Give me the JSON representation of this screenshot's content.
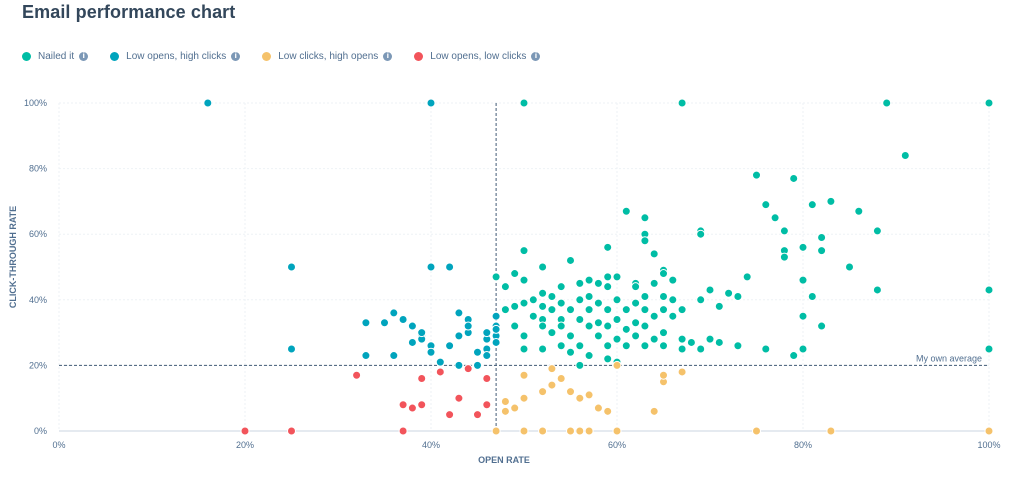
{
  "title": "Email performance chart",
  "legend": [
    {
      "label": "Nailed it",
      "color": "#00bda5"
    },
    {
      "label": "Low opens, high clicks",
      "color": "#00a4bd"
    },
    {
      "label": "Low clicks, high opens",
      "color": "#f5c26b"
    },
    {
      "label": "Low opens, low clicks",
      "color": "#f2545b"
    }
  ],
  "chart_data": {
    "type": "scatter",
    "title": "Email performance chart",
    "xlabel": "OPEN RATE",
    "ylabel": "CLICK-THROUGH RATE",
    "xlim": [
      0,
      100
    ],
    "ylim": [
      0,
      100
    ],
    "xticks": [
      "0%",
      "20%",
      "40%",
      "60%",
      "80%",
      "100%"
    ],
    "yticks": [
      "0%",
      "20%",
      "40%",
      "60%",
      "80%",
      "100%"
    ],
    "grid": true,
    "legend_position": "top-left",
    "reference_lines": [
      {
        "axis": "x",
        "value": 47
      },
      {
        "axis": "y",
        "value": 20,
        "label": "My own average"
      }
    ],
    "series": [
      {
        "name": "Nailed it",
        "color": "#00bda5",
        "points": [
          [
            50,
            100
          ],
          [
            67,
            100
          ],
          [
            89,
            100
          ],
          [
            100,
            100
          ],
          [
            91,
            84
          ],
          [
            75,
            78
          ],
          [
            79,
            77
          ],
          [
            76,
            69
          ],
          [
            83,
            70
          ],
          [
            81,
            69
          ],
          [
            86,
            67
          ],
          [
            77,
            65
          ],
          [
            61,
            67
          ],
          [
            63,
            65
          ],
          [
            88,
            61
          ],
          [
            82,
            59
          ],
          [
            78,
            61
          ],
          [
            69,
            61
          ],
          [
            69,
            60
          ],
          [
            63,
            60
          ],
          [
            63,
            58
          ],
          [
            59,
            56
          ],
          [
            80,
            56
          ],
          [
            78,
            55
          ],
          [
            82,
            55
          ],
          [
            64,
            54
          ],
          [
            50,
            55
          ],
          [
            78,
            53
          ],
          [
            55,
            52
          ],
          [
            47,
            47
          ],
          [
            49,
            48
          ],
          [
            50,
            46
          ],
          [
            52,
            50
          ],
          [
            85,
            50
          ],
          [
            65,
            49
          ],
          [
            65,
            48
          ],
          [
            57,
            46
          ],
          [
            59,
            47
          ],
          [
            60,
            47
          ],
          [
            62,
            45
          ],
          [
            64,
            45
          ],
          [
            66,
            46
          ],
          [
            48,
            44
          ],
          [
            56,
            45
          ],
          [
            58,
            45
          ],
          [
            54,
            44
          ],
          [
            62,
            44
          ],
          [
            59,
            44
          ],
          [
            74,
            47
          ],
          [
            80,
            46
          ],
          [
            100,
            43
          ],
          [
            88,
            43
          ],
          [
            52,
            42
          ],
          [
            53,
            41
          ],
          [
            57,
            41
          ],
          [
            63,
            41
          ],
          [
            65,
            41
          ],
          [
            70,
            43
          ],
          [
            72,
            42
          ],
          [
            73,
            41
          ],
          [
            69,
            40
          ],
          [
            81,
            41
          ],
          [
            50,
            39
          ],
          [
            51,
            40
          ],
          [
            54,
            39
          ],
          [
            56,
            40
          ],
          [
            58,
            39
          ],
          [
            60,
            40
          ],
          [
            62,
            39
          ],
          [
            66,
            40
          ],
          [
            48,
            37
          ],
          [
            49,
            38
          ],
          [
            52,
            38
          ],
          [
            53,
            37
          ],
          [
            55,
            37
          ],
          [
            57,
            37
          ],
          [
            59,
            37
          ],
          [
            61,
            37
          ],
          [
            63,
            37
          ],
          [
            65,
            37
          ],
          [
            67,
            37
          ],
          [
            71,
            38
          ],
          [
            80,
            35
          ],
          [
            51,
            35
          ],
          [
            52,
            34
          ],
          [
            54,
            34
          ],
          [
            56,
            34
          ],
          [
            58,
            33
          ],
          [
            60,
            34
          ],
          [
            62,
            33
          ],
          [
            64,
            35
          ],
          [
            66,
            35
          ],
          [
            49,
            32
          ],
          [
            52,
            32
          ],
          [
            54,
            32
          ],
          [
            57,
            32
          ],
          [
            59,
            32
          ],
          [
            61,
            31
          ],
          [
            63,
            32
          ],
          [
            65,
            30
          ],
          [
            82,
            32
          ],
          [
            50,
            29
          ],
          [
            53,
            30
          ],
          [
            55,
            29
          ],
          [
            58,
            29
          ],
          [
            60,
            28
          ],
          [
            62,
            29
          ],
          [
            64,
            28
          ],
          [
            67,
            28
          ],
          [
            68,
            27
          ],
          [
            70,
            28
          ],
          [
            71,
            27
          ],
          [
            54,
            26
          ],
          [
            56,
            26
          ],
          [
            59,
            26
          ],
          [
            61,
            26
          ],
          [
            63,
            26
          ],
          [
            65,
            26
          ],
          [
            67,
            25
          ],
          [
            69,
            25
          ],
          [
            73,
            26
          ],
          [
            76,
            25
          ],
          [
            79,
            23
          ],
          [
            80,
            25
          ],
          [
            100,
            25
          ],
          [
            52,
            25
          ],
          [
            55,
            24
          ],
          [
            57,
            23
          ],
          [
            59,
            22
          ],
          [
            60,
            21
          ],
          [
            56,
            20
          ],
          [
            50,
            25
          ]
        ]
      },
      {
        "name": "Low opens, high clicks",
        "color": "#00a4bd",
        "points": [
          [
            16,
            100
          ],
          [
            40,
            100
          ],
          [
            25,
            50
          ],
          [
            40,
            50
          ],
          [
            42,
            50
          ],
          [
            25,
            25
          ],
          [
            33,
            33
          ],
          [
            35,
            33
          ],
          [
            36,
            36
          ],
          [
            37,
            34
          ],
          [
            38,
            32
          ],
          [
            39,
            29
          ],
          [
            39,
            28
          ],
          [
            40,
            26
          ],
          [
            40,
            24
          ],
          [
            42,
            26
          ],
          [
            43,
            29
          ],
          [
            43,
            36
          ],
          [
            44,
            34
          ],
          [
            44,
            30
          ],
          [
            45,
            24
          ],
          [
            46,
            25
          ],
          [
            46,
            28
          ],
          [
            46,
            30
          ],
          [
            47,
            35
          ],
          [
            47,
            32
          ],
          [
            47,
            29
          ],
          [
            47,
            27
          ],
          [
            46,
            23
          ],
          [
            45,
            20
          ],
          [
            43,
            20
          ],
          [
            41,
            21
          ],
          [
            33,
            23
          ],
          [
            36,
            23
          ],
          [
            38,
            27
          ],
          [
            39,
            30
          ],
          [
            44,
            32
          ],
          [
            47,
            31
          ]
        ]
      },
      {
        "name": "Low clicks, high opens",
        "color": "#f5c26b",
        "points": [
          [
            47,
            0
          ],
          [
            50,
            0
          ],
          [
            52,
            0
          ],
          [
            55,
            0
          ],
          [
            56,
            0
          ],
          [
            57,
            0
          ],
          [
            60,
            0
          ],
          [
            75,
            0
          ],
          [
            83,
            0
          ],
          [
            100,
            0
          ],
          [
            48,
            6
          ],
          [
            49,
            7
          ],
          [
            50,
            10
          ],
          [
            52,
            12
          ],
          [
            53,
            14
          ],
          [
            53,
            19
          ],
          [
            54,
            16
          ],
          [
            55,
            12
          ],
          [
            56,
            10
          ],
          [
            57,
            11
          ],
          [
            58,
            7
          ],
          [
            59,
            6
          ],
          [
            60,
            20
          ],
          [
            64,
            6
          ],
          [
            65,
            15
          ],
          [
            65,
            17
          ],
          [
            67,
            18
          ],
          [
            50,
            17
          ],
          [
            48,
            9
          ]
        ]
      },
      {
        "name": "Low opens, low clicks",
        "color": "#f2545b",
        "points": [
          [
            20,
            0
          ],
          [
            25,
            0
          ],
          [
            37,
            0
          ],
          [
            32,
            17
          ],
          [
            37,
            8
          ],
          [
            38,
            7
          ],
          [
            39,
            8
          ],
          [
            39,
            16
          ],
          [
            41,
            18
          ],
          [
            42,
            5
          ],
          [
            43,
            10
          ],
          [
            44,
            19
          ],
          [
            45,
            5
          ],
          [
            46,
            16
          ],
          [
            46,
            8
          ]
        ]
      }
    ]
  }
}
